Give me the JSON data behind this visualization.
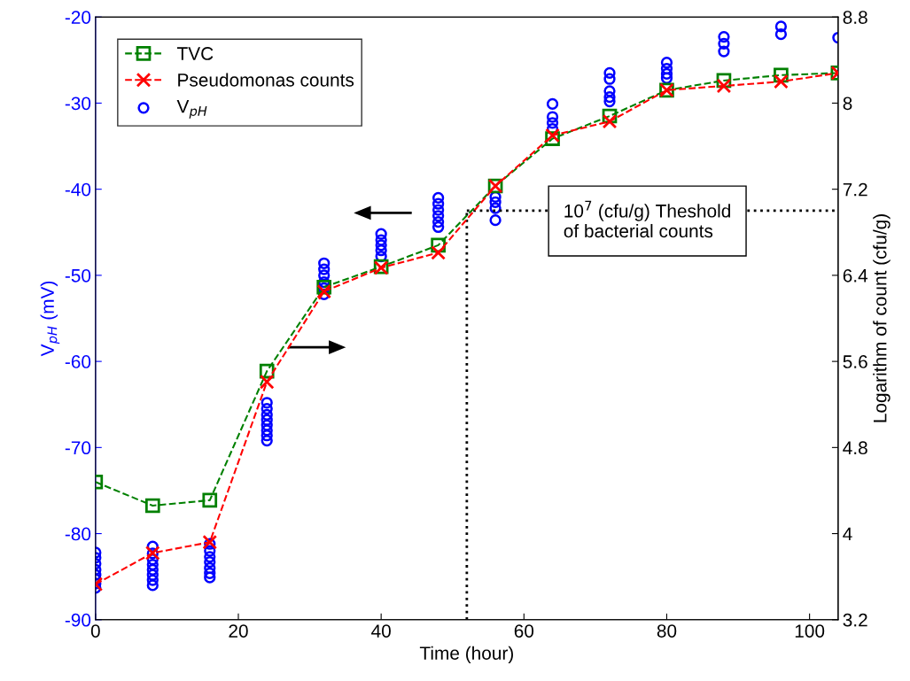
{
  "chart_data": {
    "type": "line",
    "xlabel": "Time (hour)",
    "ylabel": "V$_{pH}$ (mV)",
    "y2label": "Logarithm of count (cfu/g)",
    "xlim": [
      0,
      104
    ],
    "xticks": [
      0,
      20,
      40,
      60,
      80,
      100
    ],
    "ylim": [
      -90,
      -20
    ],
    "yticks": [
      -90,
      -80,
      -70,
      -60,
      -50,
      -40,
      -30,
      -20
    ],
    "y2lim": [
      3.2,
      8.8
    ],
    "y2ticks": [
      3.2,
      4,
      4.8,
      5.6,
      6.4,
      7.2,
      8,
      8.8
    ],
    "legend": "top left",
    "grid": false,
    "series": [
      {
        "name": "TVC",
        "axis": "y2",
        "color": "#008000",
        "marker": "square",
        "line_style": "dashed",
        "x": [
          0,
          8,
          16,
          24,
          32,
          40,
          48,
          56,
          64,
          72,
          80,
          88,
          96,
          104
        ],
        "values": [
          4.48,
          4.26,
          4.31,
          5.51,
          6.29,
          6.48,
          6.68,
          7.23,
          7.67,
          7.88,
          8.12,
          8.21,
          8.26,
          8.28
        ]
      },
      {
        "name": "Pseudomonas counts",
        "axis": "y2",
        "color": "#ff0000",
        "marker": "cross",
        "line_style": "dashed",
        "x": [
          0,
          8,
          16,
          24,
          32,
          40,
          48,
          56,
          64,
          72,
          80,
          88,
          96,
          104
        ],
        "values": [
          3.53,
          3.82,
          3.92,
          5.41,
          6.25,
          6.47,
          6.61,
          7.23,
          7.7,
          7.83,
          8.12,
          8.16,
          8.2,
          8.28
        ]
      },
      {
        "name": "V$_{pH}$",
        "type": "scatter",
        "axis": "y",
        "color": "#0000ff",
        "marker": "circle",
        "x": [
          0,
          0,
          0,
          0,
          0,
          0,
          0,
          0,
          8,
          8,
          8,
          8,
          8,
          8,
          8,
          8,
          16,
          16,
          16,
          16,
          16,
          16,
          16,
          24,
          24,
          24,
          24,
          24,
          24,
          24,
          24,
          32,
          32,
          32,
          32,
          32,
          32,
          40,
          40,
          40,
          40,
          40,
          48,
          48,
          48,
          48,
          48,
          48,
          56,
          56,
          56,
          56,
          64,
          64,
          64,
          64,
          72,
          72,
          72,
          72,
          72,
          80,
          80,
          80,
          80,
          88,
          88,
          88,
          96,
          96,
          104
        ],
        "values": [
          -82.2,
          -82.8,
          -83.5,
          -84.2,
          -84.8,
          -85.3,
          -85.8,
          -86.3,
          -81.5,
          -82.3,
          -83,
          -83.6,
          -84.2,
          -84.8,
          -85.4,
          -86,
          -81.2,
          -82,
          -82.7,
          -83.3,
          -84,
          -84.6,
          -85.1,
          -64.8,
          -65.5,
          -66.2,
          -66.8,
          -67.4,
          -68,
          -68.6,
          -69.2,
          -48.6,
          -49.3,
          -50,
          -50.8,
          -51.5,
          -52.2,
          -45.2,
          -45.9,
          -46.5,
          -47.1,
          -47.8,
          -41,
          -41.7,
          -42.4,
          -43.1,
          -43.8,
          -44.4,
          -40.9,
          -41.5,
          -42.2,
          -43.6,
          -30.1,
          -31.6,
          -32.3,
          -33,
          -26.5,
          -27.2,
          -28.6,
          -29.3,
          -29.8,
          -25.3,
          -26,
          -26.6,
          -27.1,
          -22.3,
          -23.1,
          -24,
          -21.1,
          -22,
          -22.4
        ]
      }
    ],
    "ref_lines": [
      {
        "axis": "x",
        "value": 52,
        "color": "#000000",
        "line_style": "dotted"
      },
      {
        "axis": "y2",
        "value": 7,
        "color": "#000000",
        "line_style": "dotted"
      }
    ],
    "annotations": [
      "10$^{7}$ (cfu/g) Theshold\nof bacterial counts"
    ]
  }
}
